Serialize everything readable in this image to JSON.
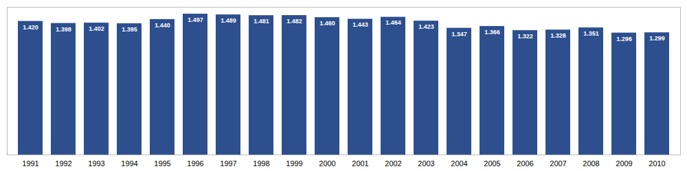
{
  "chart_data": {
    "type": "bar",
    "categories": [
      "1991",
      "1992",
      "1993",
      "1994",
      "1995",
      "1996",
      "1997",
      "1998",
      "1999",
      "2000",
      "2001",
      "2002",
      "2003",
      "2004",
      "2005",
      "2006",
      "2007",
      "2008",
      "2009",
      "2010"
    ],
    "values": [
      1.42,
      1.398,
      1.402,
      1.395,
      1.44,
      1.497,
      1.489,
      1.481,
      1.482,
      1.46,
      1.443,
      1.464,
      1.423,
      1.347,
      1.366,
      1.322,
      1.328,
      1.351,
      1.296,
      1.299
    ],
    "value_labels": [
      "1.420",
      "1.398",
      "1.402",
      "1.395",
      "1.440",
      "1.497",
      "1.489",
      "1.481",
      "1.482",
      "1.460",
      "1.443",
      "1.464",
      "1.423",
      "1.347",
      "1.366",
      "1.322",
      "1.328",
      "1.351",
      "1.296",
      "1.299"
    ],
    "color": "#2d4f8e",
    "ylim": [
      0,
      1.57
    ],
    "grid": false,
    "data_labels": true,
    "tick_labels": "x"
  }
}
